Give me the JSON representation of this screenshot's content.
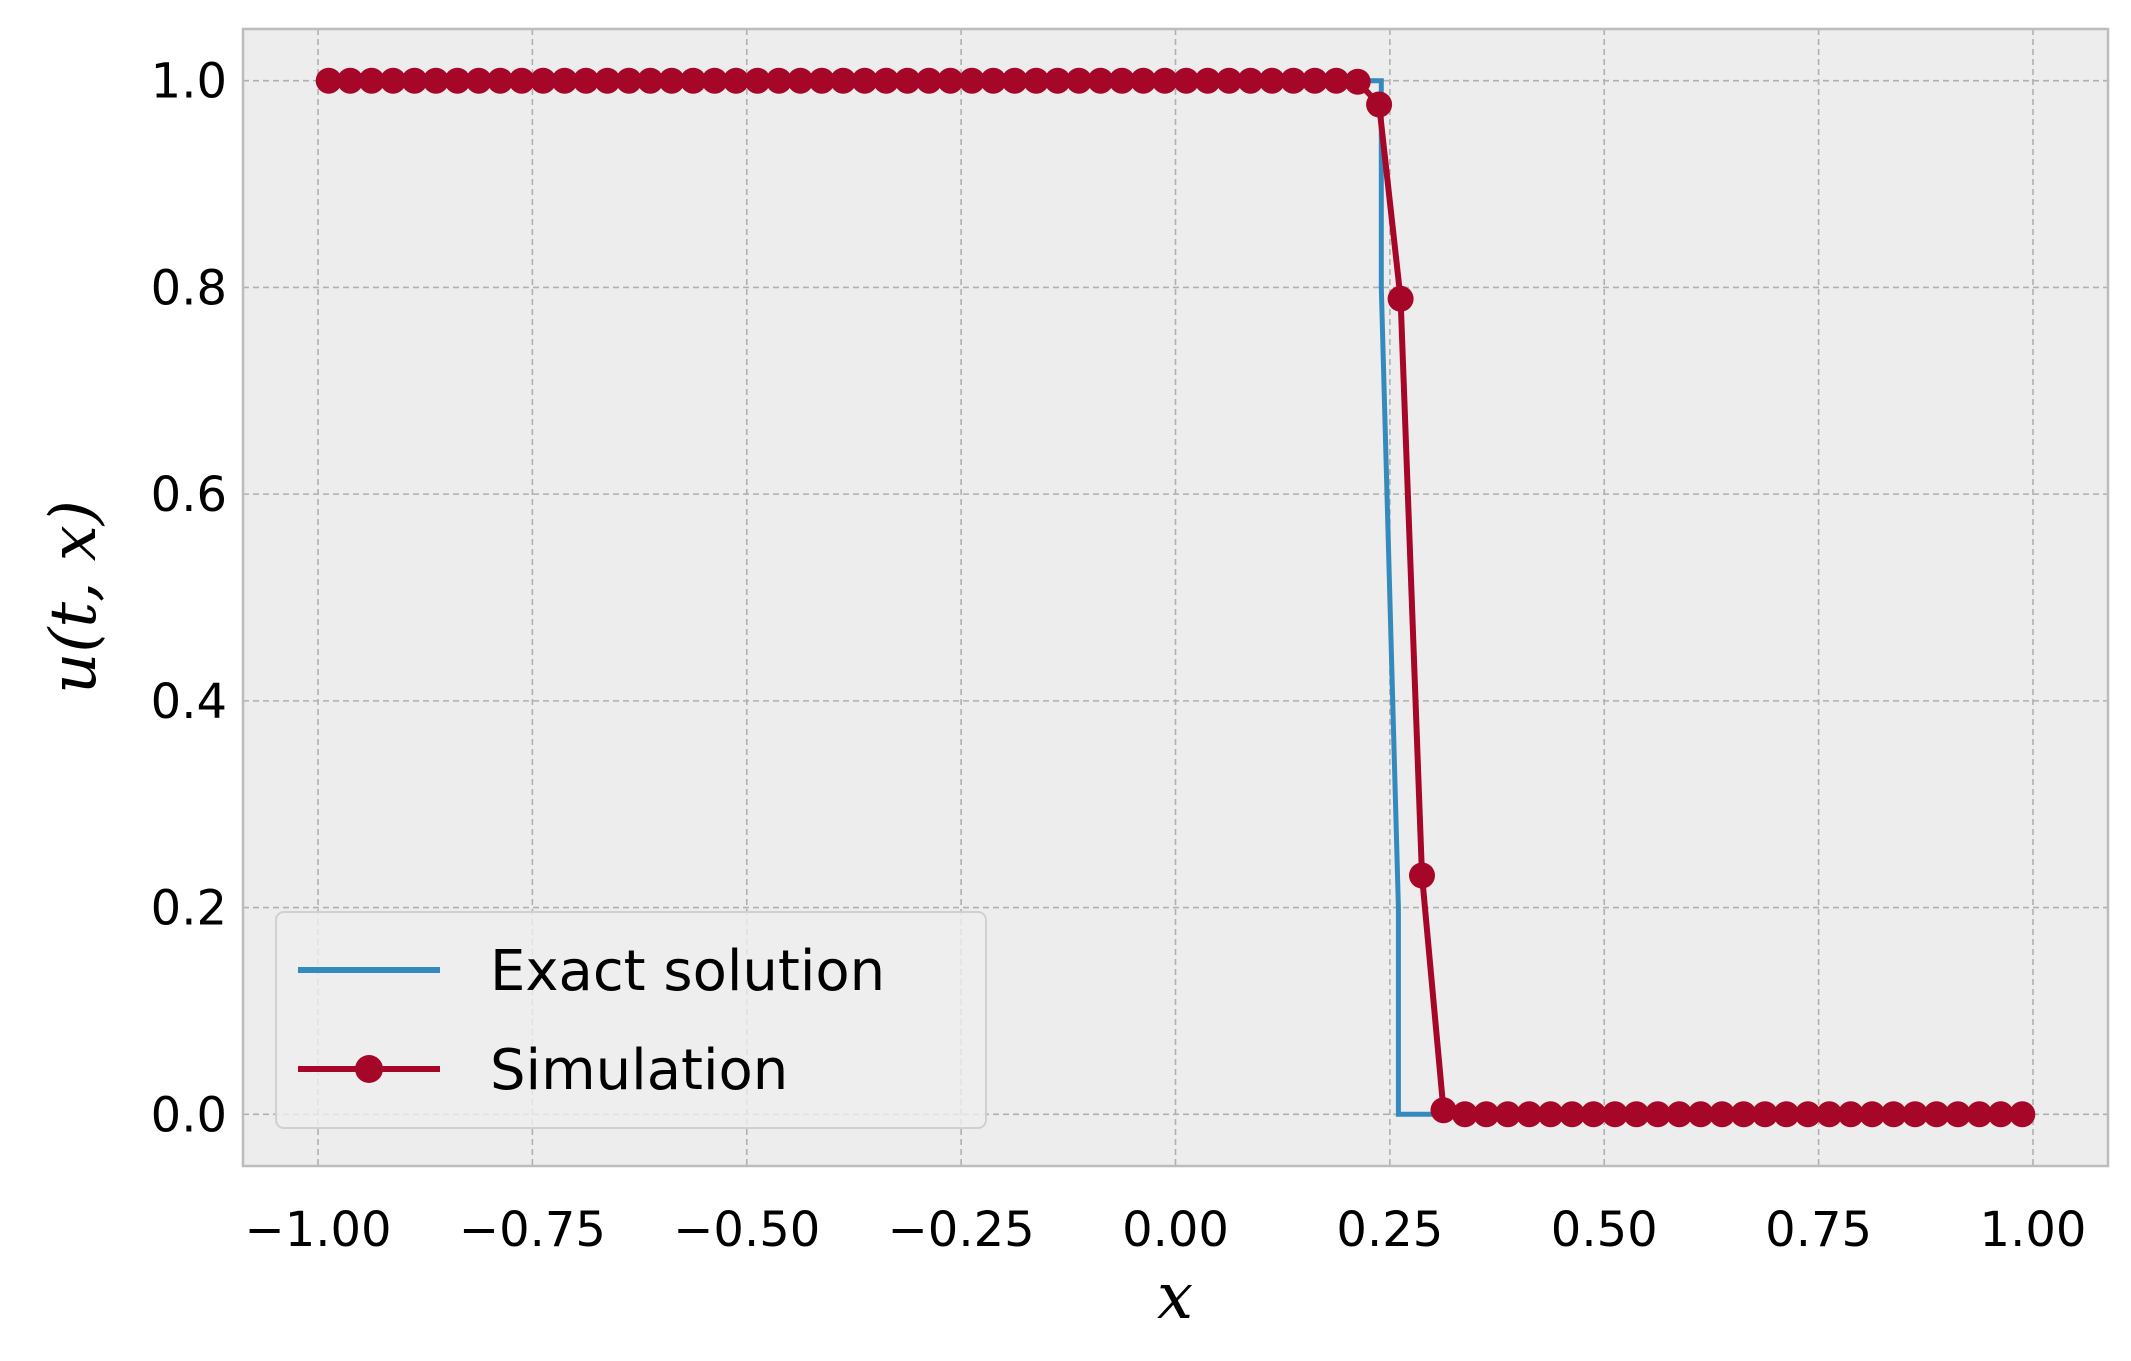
{
  "chart_data": {
    "type": "line",
    "xlabel": "x",
    "ylabel": "u(t, x)",
    "xlim": [
      -1.0875,
      1.0875
    ],
    "ylim": [
      -0.05,
      1.05
    ],
    "xticks": [
      -1.0,
      -0.75,
      -0.5,
      -0.25,
      0.0,
      0.25,
      0.5,
      0.75,
      1.0
    ],
    "xtick_labels": [
      "−1.00",
      "−0.75",
      "−0.50",
      "−0.25",
      "0.00",
      "0.25",
      "0.50",
      "0.75",
      "1.00"
    ],
    "yticks": [
      0.0,
      0.2,
      0.4,
      0.6,
      0.8,
      1.0
    ],
    "ytick_labels": [
      "0.0",
      "0.2",
      "0.4",
      "0.6",
      "0.8",
      "1.0"
    ],
    "grid": true,
    "legend_position": "lower-left",
    "colors": {
      "background": "#ededed",
      "grid": "#b0b0b0",
      "exact": "#348abd",
      "simulation": "#a60628"
    },
    "series": [
      {
        "name": "Exact solution",
        "style": "line",
        "x": [
          -1.0,
          0.24,
          0.24,
          0.26,
          0.26,
          1.0
        ],
        "values": [
          1.0,
          1.0,
          0.8,
          0.2,
          0.0,
          0.0
        ]
      },
      {
        "name": "Simulation",
        "style": "line-marker",
        "x_start": -0.9875,
        "x_step": 0.025,
        "values": [
          1,
          1,
          1,
          1,
          1,
          1,
          1,
          1,
          1,
          1,
          1,
          1,
          1,
          1,
          1,
          1,
          1,
          1,
          1,
          1,
          1,
          1,
          1,
          1,
          1,
          1,
          1,
          1,
          1,
          1,
          1,
          1,
          1,
          1,
          1,
          1,
          1,
          1,
          1,
          1,
          1,
          1,
          1,
          1,
          1,
          1,
          1,
          1,
          0.999,
          0.977,
          0.789,
          0.231,
          0.004,
          0,
          0,
          0,
          0,
          0,
          0,
          0,
          0,
          0,
          0,
          0,
          0,
          0,
          0,
          0,
          0,
          0,
          0,
          0,
          0,
          0,
          0,
          0,
          0,
          0,
          0,
          0
        ]
      }
    ]
  }
}
